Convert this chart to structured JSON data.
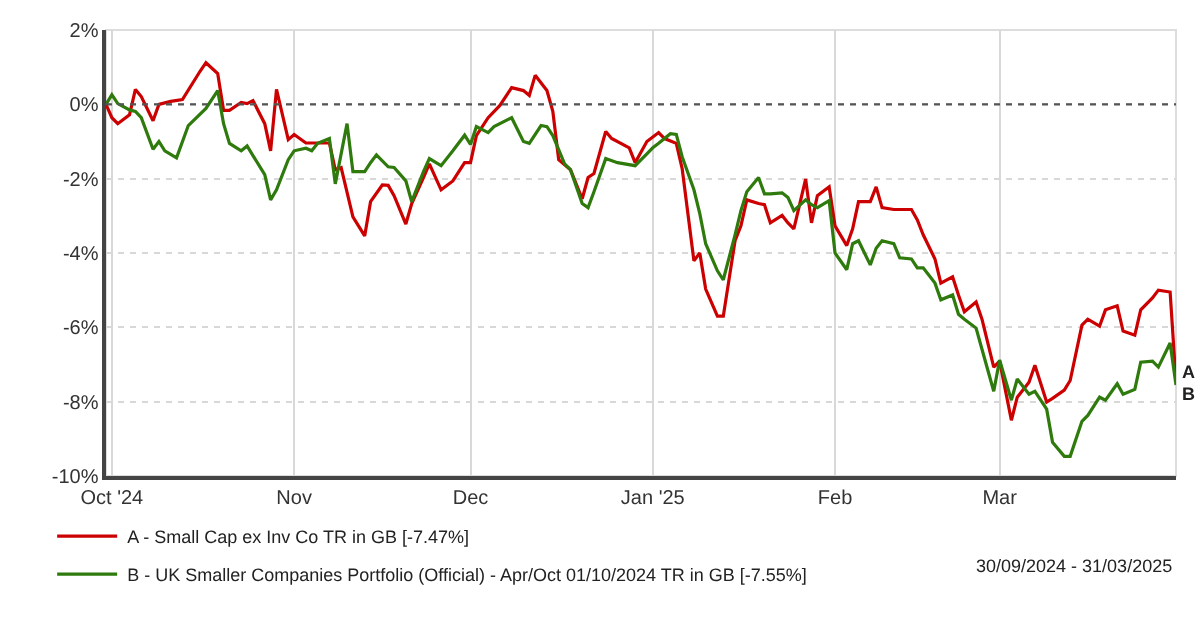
{
  "chart_data": {
    "type": "line",
    "series": [
      {
        "name": "A - Small Cap ex Inv Co TR in GB [-7.47%]",
        "color": "#cc0000",
        "x": [
          "2024-09-30",
          "2024-10-01",
          "2024-10-02",
          "2024-10-04",
          "2024-10-05",
          "2024-10-06",
          "2024-10-08",
          "2024-10-09",
          "2024-10-11",
          "2024-10-13",
          "2024-10-16",
          "2024-10-17",
          "2024-10-19",
          "2024-10-20",
          "2024-10-21",
          "2024-10-23",
          "2024-10-24",
          "2024-10-25",
          "2024-10-27",
          "2024-10-28",
          "2024-10-29",
          "2024-10-31",
          "2024-11-01",
          "2024-11-03",
          "2024-11-07",
          "2024-11-08",
          "2024-11-09",
          "2024-11-11",
          "2024-11-13",
          "2024-11-14",
          "2024-11-16",
          "2024-11-17",
          "2024-11-18",
          "2024-11-20",
          "2024-11-21",
          "2024-11-23",
          "2024-11-24",
          "2024-11-26",
          "2024-11-28",
          "2024-11-30",
          "2024-12-01",
          "2024-12-02",
          "2024-12-04",
          "2024-12-06",
          "2024-12-08",
          "2024-12-10",
          "2024-12-11",
          "2024-12-12",
          "2024-12-14",
          "2024-12-15",
          "2024-12-16",
          "2024-12-18",
          "2024-12-20",
          "2024-12-21",
          "2024-12-22",
          "2024-12-24",
          "2024-12-25",
          "2024-12-28",
          "2024-12-29",
          "2024-12-31",
          "2025-01-02",
          "2025-01-03",
          "2025-01-05",
          "2025-01-06",
          "2025-01-08",
          "2025-01-09",
          "2025-01-10",
          "2025-01-12",
          "2025-01-13",
          "2025-01-15",
          "2025-01-16",
          "2025-01-17",
          "2025-01-19",
          "2025-01-20",
          "2025-01-21",
          "2025-01-23",
          "2025-01-24",
          "2025-01-25",
          "2025-01-27",
          "2025-01-28",
          "2025-01-29",
          "2025-01-31",
          "2025-02-01",
          "2025-02-03",
          "2025-02-04",
          "2025-02-05",
          "2025-02-07",
          "2025-02-08",
          "2025-02-09",
          "2025-02-11",
          "2025-02-14",
          "2025-02-15",
          "2025-02-16",
          "2025-02-18",
          "2025-02-19",
          "2025-02-21",
          "2025-02-22",
          "2025-02-23",
          "2025-02-25",
          "2025-02-26",
          "2025-02-28",
          "2025-03-01",
          "2025-03-03",
          "2025-03-04",
          "2025-03-06",
          "2025-03-07",
          "2025-03-09",
          "2025-03-10",
          "2025-03-12",
          "2025-03-13",
          "2025-03-15",
          "2025-03-16",
          "2025-03-18",
          "2025-03-19",
          "2025-03-21",
          "2025-03-22",
          "2025-03-24",
          "2025-03-25",
          "2025-03-27",
          "2025-03-28",
          "2025-03-30",
          "2025-03-31"
        ],
        "values": [
          0,
          -0.36,
          -0.52,
          -0.28,
          0.4,
          0.21,
          -0.44,
          0,
          0.08,
          0.13,
          0.89,
          1.12,
          0.83,
          -0.16,
          -0.16,
          0.05,
          0.02,
          0.1,
          -0.52,
          -1.25,
          0.4,
          -0.95,
          -0.81,
          -1.04,
          -1.04,
          -1.76,
          -1.7,
          -3.03,
          -3.54,
          -2.62,
          -2.17,
          -2.18,
          -2.46,
          -3.22,
          -2.67,
          -1.97,
          -1.6,
          -2.3,
          -2.06,
          -1.57,
          -1.57,
          -0.84,
          -0.36,
          -0.03,
          0.45,
          0.37,
          0.24,
          0.78,
          0.37,
          -0.19,
          -1.49,
          -1.76,
          -2.54,
          -1.97,
          -1.86,
          -0.73,
          -0.92,
          -1.17,
          -1.57,
          -1.0,
          -0.76,
          -0.92,
          -1.05,
          -1.73,
          -4.21,
          -4.0,
          -4.97,
          -5.7,
          -5.7,
          -3.67,
          -3.27,
          -2.57,
          -2.67,
          -2.7,
          -3.19,
          -2.99,
          -3.19,
          -3.35,
          -2.01,
          -3.19,
          -2.46,
          -2.22,
          -3.27,
          -3.8,
          -3.35,
          -2.62,
          -2.62,
          -2.22,
          -2.78,
          -2.83,
          -2.83,
          -3.11,
          -3.51,
          -4.16,
          -4.81,
          -4.64,
          -5.13,
          -5.58,
          -5.32,
          -5.78,
          -7.07,
          -6.91,
          -8.5,
          -7.88,
          -7.48,
          -7.02,
          -8.01,
          -7.91,
          -7.69,
          -7.43,
          -5.94,
          -5.78,
          -5.97,
          -5.53,
          -5.42,
          -6.1,
          -6.21,
          -5.53,
          -5.21,
          -5.0,
          -5.05,
          -7.47
        ]
      },
      {
        "name": "B - UK Smaller Companies Portfolio (Official) - Apr/Oct 01/10/2024 TR in GB [-7.55%]",
        "color": "#2e7a0c",
        "x": [
          "2024-09-30",
          "2024-10-01",
          "2024-10-02",
          "2024-10-04",
          "2024-10-05",
          "2024-10-06",
          "2024-10-08",
          "2024-10-09",
          "2024-10-10",
          "2024-10-12",
          "2024-10-14",
          "2024-10-17",
          "2024-10-19",
          "2024-10-20",
          "2024-10-21",
          "2024-10-23",
          "2024-10-24",
          "2024-10-25",
          "2024-10-27",
          "2024-10-28",
          "2024-10-29",
          "2024-10-31",
          "2024-11-01",
          "2024-11-03",
          "2024-11-04",
          "2024-11-05",
          "2024-11-07",
          "2024-11-08",
          "2024-11-10",
          "2024-11-11",
          "2024-11-13",
          "2024-11-14",
          "2024-11-15",
          "2024-11-17",
          "2024-11-18",
          "2024-11-20",
          "2024-11-21",
          "2024-11-23",
          "2024-11-24",
          "2024-11-26",
          "2024-11-28",
          "2024-11-30",
          "2024-12-01",
          "2024-12-02",
          "2024-12-04",
          "2024-12-05",
          "2024-12-08",
          "2024-12-10",
          "2024-12-11",
          "2024-12-13",
          "2024-12-14",
          "2024-12-15",
          "2024-12-17",
          "2024-12-18",
          "2024-12-20",
          "2024-12-21",
          "2024-12-22",
          "2024-12-24",
          "2024-12-26",
          "2024-12-29",
          "2024-12-31",
          "2025-01-01",
          "2025-01-02",
          "2025-01-04",
          "2025-01-05",
          "2025-01-06",
          "2025-01-08",
          "2025-01-09",
          "2025-01-10",
          "2025-01-12",
          "2025-01-13",
          "2025-01-15",
          "2025-01-16",
          "2025-01-17",
          "2025-01-19",
          "2025-01-20",
          "2025-01-21",
          "2025-01-23",
          "2025-01-24",
          "2025-01-25",
          "2025-01-27",
          "2025-01-28",
          "2025-01-29",
          "2025-01-31",
          "2025-02-01",
          "2025-02-03",
          "2025-02-04",
          "2025-02-05",
          "2025-02-07",
          "2025-02-08",
          "2025-02-09",
          "2025-02-11",
          "2025-02-12",
          "2025-02-14",
          "2025-02-15",
          "2025-02-16",
          "2025-02-18",
          "2025-02-19",
          "2025-02-21",
          "2025-02-22",
          "2025-02-23",
          "2025-02-25",
          "2025-02-26",
          "2025-02-28",
          "2025-03-01",
          "2025-03-03",
          "2025-03-04",
          "2025-03-06",
          "2025-03-07",
          "2025-03-09",
          "2025-03-10",
          "2025-03-12",
          "2025-03-13",
          "2025-03-15",
          "2025-03-16",
          "2025-03-18",
          "2025-03-19",
          "2025-03-21",
          "2025-03-22",
          "2025-03-24",
          "2025-03-25",
          "2025-03-27",
          "2025-03-28",
          "2025-03-30",
          "2025-03-31"
        ],
        "values": [
          0,
          0.26,
          0.02,
          -0.15,
          -0.19,
          -0.36,
          -1.21,
          -1.0,
          -1.25,
          -1.44,
          -0.57,
          -0.11,
          0.37,
          -0.52,
          -1.05,
          -1.25,
          -1.12,
          -1.38,
          -1.89,
          -2.57,
          -2.3,
          -1.49,
          -1.25,
          -1.18,
          -1.25,
          -1.05,
          -0.92,
          -2.14,
          -0.52,
          -1.81,
          -1.81,
          -1.57,
          -1.36,
          -1.68,
          -1.7,
          -2.06,
          -2.62,
          -1.81,
          -1.46,
          -1.65,
          -1.25,
          -0.83,
          -1.08,
          -0.6,
          -0.76,
          -0.6,
          -0.36,
          -1.0,
          -1.05,
          -0.57,
          -0.6,
          -0.84,
          -1.6,
          -1.76,
          -2.67,
          -2.78,
          -2.35,
          -1.46,
          -1.57,
          -1.65,
          -1.33,
          -1.17,
          -1.05,
          -0.79,
          -0.81,
          -1.41,
          -2.3,
          -2.94,
          -3.75,
          -4.48,
          -4.72,
          -3.51,
          -2.86,
          -2.35,
          -1.97,
          -2.41,
          -2.41,
          -2.38,
          -2.51,
          -2.86,
          -2.57,
          -2.7,
          -2.78,
          -2.59,
          -4.0,
          -4.45,
          -3.75,
          -3.67,
          -4.32,
          -3.87,
          -3.67,
          -3.75,
          -4.13,
          -4.16,
          -4.4,
          -4.4,
          -4.81,
          -5.26,
          -5.13,
          -5.65,
          -5.78,
          -6.02,
          -6.59,
          -7.72,
          -6.88,
          -7.96,
          -7.39,
          -7.8,
          -7.72,
          -8.2,
          -9.09,
          -9.47,
          -9.47,
          -8.53,
          -8.37,
          -7.88,
          -7.96,
          -7.52,
          -7.8,
          -7.67,
          -6.94,
          -6.91,
          -7.07,
          -6.42,
          -7.55
        ]
      }
    ],
    "xlim": [
      "2024-09-30",
      "2025-03-31"
    ],
    "xticks": [
      {
        "value": "2024-10-01",
        "label": "Oct '24"
      },
      {
        "value": "2024-11-01",
        "label": "Nov"
      },
      {
        "value": "2024-12-01",
        "label": "Dec"
      },
      {
        "value": "2025-01-01",
        "label": "Jan '25"
      },
      {
        "value": "2025-02-01",
        "label": "Feb"
      },
      {
        "value": "2025-03-01",
        "label": "Mar"
      }
    ],
    "ylim": [
      -10,
      2
    ],
    "yticks": [
      {
        "value": -10,
        "label": "-10%"
      },
      {
        "value": -8,
        "label": "-8%"
      },
      {
        "value": -6,
        "label": "-6%"
      },
      {
        "value": -4,
        "label": "-4%"
      },
      {
        "value": -2,
        "label": "-2%"
      },
      {
        "value": 0,
        "label": "0%"
      },
      {
        "value": 2,
        "label": "2%"
      }
    ],
    "ref_lines": [
      {
        "axis": "y",
        "value": 0,
        "color": "#555555",
        "line_style": "dotted"
      }
    ],
    "grid": true,
    "legend": "bottom",
    "marker": "none",
    "line_style": "solid",
    "annotations": [
      "A",
      "B",
      "30/09/2024 - 31/03/2025"
    ]
  }
}
